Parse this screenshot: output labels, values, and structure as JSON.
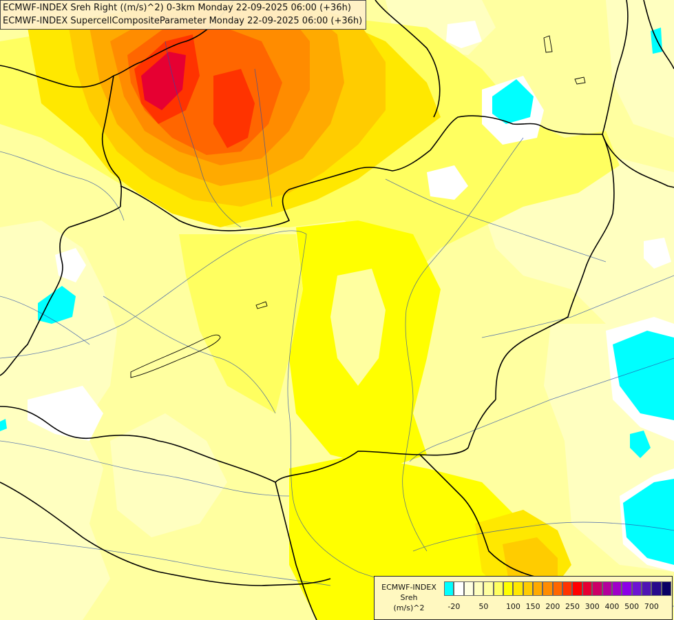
{
  "title_lines": [
    "ECMWF-INDEX Sreh Right ((m/s)^2) 0-3km Monday 22-09-2025 06:00 (+36h)",
    "ECMWF-INDEX SupercellCompositeParameter Monday 22-09-2025 06:00 (+36h)"
  ],
  "legend": {
    "source": "ECMWF-INDEX",
    "variable": "Sreh",
    "unit": "(m/s)^2",
    "colors": [
      "#00ffff",
      "#ffffff",
      "#ffffe0",
      "#ffffc0",
      "#ffffa0",
      "#ffff60",
      "#ffff00",
      "#ffe800",
      "#ffcc00",
      "#ffaa00",
      "#ff8c00",
      "#ff6600",
      "#ff3300",
      "#ff0000",
      "#e60032",
      "#cc0066",
      "#b4009b",
      "#a000c8",
      "#8c00e6",
      "#6e14d2",
      "#5014b4",
      "#280a8c",
      "#0a0064"
    ],
    "ticks": [
      {
        "label": "-20",
        "value": -20
      },
      {
        "label": "50",
        "value": 50
      },
      {
        "label": "100",
        "value": 100
      },
      {
        "label": "150",
        "value": 150
      },
      {
        "label": "200",
        "value": 200
      },
      {
        "label": "250",
        "value": 250
      },
      {
        "label": "300",
        "value": 300
      },
      {
        "label": "400",
        "value": 400
      },
      {
        "label": "500",
        "value": 500
      },
      {
        "label": "700",
        "value": 700
      }
    ]
  },
  "field_colors": {
    "pale": "#ffffc0",
    "light": "#ffffa0",
    "yellow": "#ffff60",
    "strong_yellow": "#ffff00",
    "gold": "#ffe800",
    "orange_light": "#ffcc00",
    "orange": "#ffaa00",
    "orange_dark": "#ff8c00",
    "red_orange": "#ff6600",
    "red": "#ff3300",
    "crimson": "#e60032",
    "cyan": "#00ffff",
    "white": "#ffffff"
  }
}
